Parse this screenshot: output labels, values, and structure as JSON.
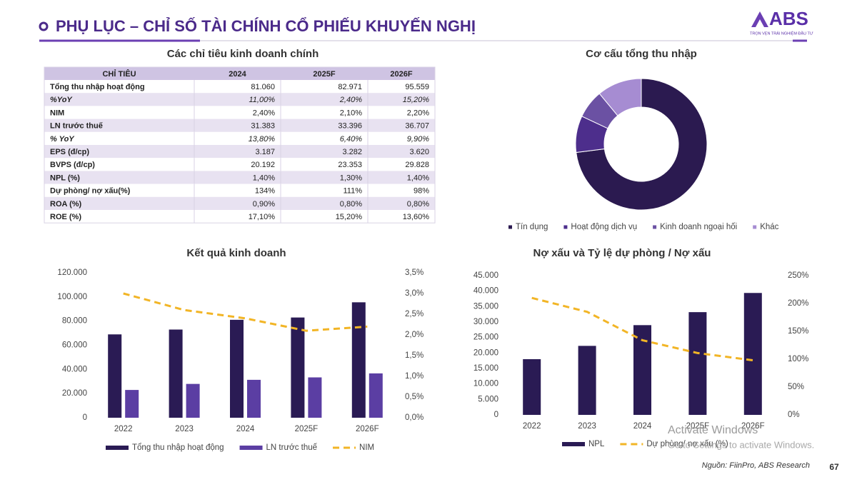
{
  "header": {
    "title": "PHỤ LỤC – CHỈ SỐ TÀI CHÍNH CỔ PHIẾU KHUYẾN NGHỊ",
    "logo": "ABS",
    "tagline": "TRỌN VẸN TRẢI NGHIỆM ĐẦU TƯ"
  },
  "table": {
    "title": "Các chỉ tiêu kinh doanh chính",
    "columns": [
      "CHỈ TIÊU",
      "2024",
      "2025F",
      "2026F"
    ],
    "rows": [
      [
        "Tổng thu nhập hoạt động",
        "81.060",
        "82.971",
        "95.559"
      ],
      [
        "%YoY",
        "11,00%",
        "2,40%",
        "15,20%"
      ],
      [
        "NIM",
        "2,40%",
        "2,10%",
        "2,20%"
      ],
      [
        "LN trước thuế",
        "31.383",
        "33.396",
        "36.707"
      ],
      [
        "% YoY",
        "13,80%",
        "6,40%",
        "9,90%"
      ],
      [
        "EPS (đ/cp)",
        "3.187",
        "3.282",
        "3.620"
      ],
      [
        "BVPS (đ/cp)",
        "20.192",
        "23.353",
        "29.828"
      ],
      [
        "NPL (%)",
        "1,40%",
        "1,30%",
        "1,40%"
      ],
      [
        "Dự phòng/ nợ xấu(%)",
        "134%",
        "111%",
        "98%"
      ],
      [
        "ROA (%)",
        "0,90%",
        "0,80%",
        "0,80%"
      ],
      [
        "ROE (%)",
        "17,10%",
        "15,20%",
        "13,60%"
      ]
    ]
  },
  "chart_data": [
    {
      "type": "pie",
      "donut": true,
      "title": "Cơ cấu tổng thu nhập",
      "categories": [
        "Tín dụng",
        "Hoạt động dịch vụ",
        "Kinh doanh ngoại hối",
        "Khác"
      ],
      "values": [
        73,
        9,
        7,
        11
      ],
      "colors": [
        "#2b1a50",
        "#4d2e8c",
        "#6b51a3",
        "#a68cd2"
      ],
      "legend": "bottom"
    },
    {
      "type": "combo",
      "title": "Kết quả kinh doanh",
      "categories": [
        "2022",
        "2023",
        "2024",
        "2025F",
        "2026F"
      ],
      "series": [
        {
          "name": "Tổng thu nhập hoạt động",
          "type": "bar",
          "color": "#2a1b54",
          "values": [
            69000,
            73000,
            81060,
            82971,
            95559
          ]
        },
        {
          "name": "LN trước thuế",
          "type": "bar",
          "color": "#5b3ea3",
          "values": [
            23000,
            28000,
            31383,
            33396,
            36707
          ]
        },
        {
          "name": "NIM",
          "type": "line",
          "axis": "y2",
          "dashed": true,
          "color": "#f2b526",
          "values": [
            3.0,
            2.6,
            2.4,
            2.1,
            2.2
          ]
        }
      ],
      "ylim": [
        0,
        120000
      ],
      "yticks": [
        0,
        {
          "value": 20000,
          "label": "20.000"
        },
        {
          "value": 40000,
          "label": "40.000"
        },
        {
          "value": 60000,
          "label": "60.000"
        },
        {
          "value": 80000,
          "label": "80.000"
        },
        {
          "value": 100000,
          "label": "100.000"
        },
        {
          "value": 120000,
          "label": "120.000"
        }
      ],
      "y2lim": [
        0,
        3.5
      ],
      "y2ticks": [
        {
          "value": 0,
          "label": "0,0%"
        },
        {
          "value": 0.5,
          "label": "0,5%"
        },
        {
          "value": 1,
          "label": "1,0%"
        },
        {
          "value": 1.5,
          "label": "1,5%"
        },
        {
          "value": 2,
          "label": "2,0%"
        },
        {
          "value": 2.5,
          "label": "2,5%"
        },
        {
          "value": 3,
          "label": "3,0%"
        },
        {
          "value": 3.5,
          "label": "3,5%"
        }
      ],
      "legend": "bottom"
    },
    {
      "type": "combo",
      "title": "Nợ xấu và Tỷ lệ dự phòng / Nợ xấu",
      "categories": [
        "2022",
        "2023",
        "2024",
        "2025F",
        "2026F"
      ],
      "series": [
        {
          "name": "NPL",
          "type": "bar",
          "color": "#2a1b54",
          "values": [
            18000,
            22300,
            29000,
            33200,
            39400
          ]
        },
        {
          "name": "Dự phòng/ nợ xấu (%)",
          "type": "line",
          "axis": "y2",
          "dashed": true,
          "color": "#f2b526",
          "values": [
            210,
            185,
            134,
            111,
            98
          ]
        }
      ],
      "ylim": [
        0,
        45000
      ],
      "yticks": [
        0,
        {
          "value": 5000,
          "label": "5.000"
        },
        {
          "value": 10000,
          "label": "10.000"
        },
        {
          "value": 15000,
          "label": "15.000"
        },
        {
          "value": 20000,
          "label": "20.000"
        },
        {
          "value": 25000,
          "label": "25.000"
        },
        {
          "value": 30000,
          "label": "30.000"
        },
        {
          "value": 35000,
          "label": "35.000"
        },
        {
          "value": 40000,
          "label": "40.000"
        },
        {
          "value": 45000,
          "label": "45.000"
        }
      ],
      "y2lim": [
        0,
        250
      ],
      "y2ticks": [
        {
          "value": 0,
          "label": "0%"
        },
        {
          "value": 50,
          "label": "50%"
        },
        {
          "value": 100,
          "label": "100%"
        },
        {
          "value": 150,
          "label": "150%"
        },
        {
          "value": 200,
          "label": "200%"
        },
        {
          "value": 250,
          "label": "250%"
        }
      ],
      "legend": "bottom"
    }
  ],
  "watermark": {
    "title": "Activate Windows",
    "text": "Go to Settings to activate Windows."
  },
  "footer": {
    "source": "Nguồn: FiinPro, ABS Research",
    "page": "67"
  }
}
